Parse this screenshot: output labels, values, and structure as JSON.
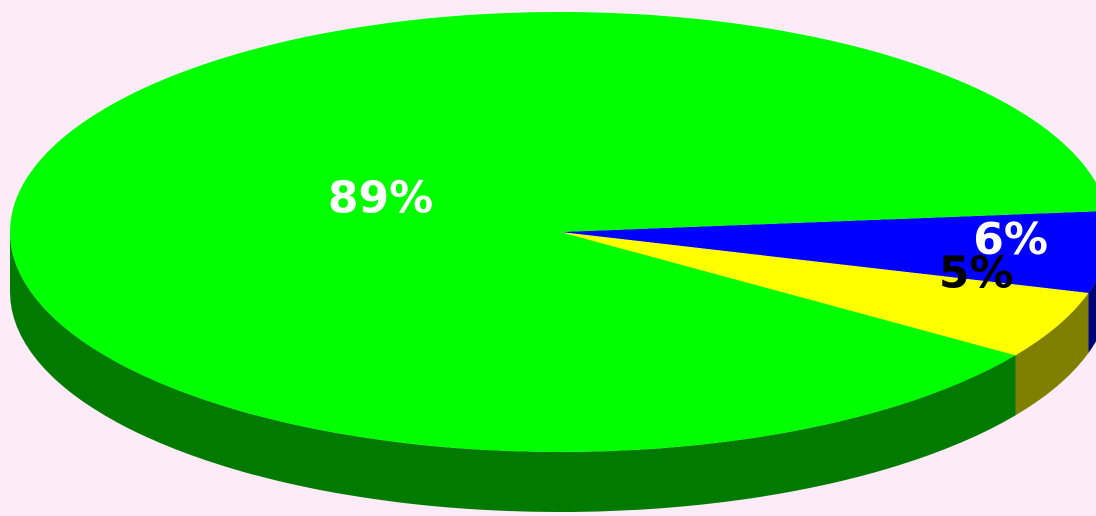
{
  "chart_data": {
    "type": "pie",
    "style": "3d",
    "series": [
      {
        "label": "89%",
        "value": 89,
        "color": "#00ff00",
        "side_color": "#007a00",
        "label_color": "#ffffff"
      },
      {
        "label": "6%",
        "value": 6,
        "color": "#0000ff",
        "side_color": "#00007a",
        "label_color": "#ffffff"
      },
      {
        "label": "5%",
        "value": 5,
        "color": "#ffff00",
        "side_color": "#808000",
        "label_color": "#000000"
      }
    ],
    "background": "#fdebf7"
  }
}
